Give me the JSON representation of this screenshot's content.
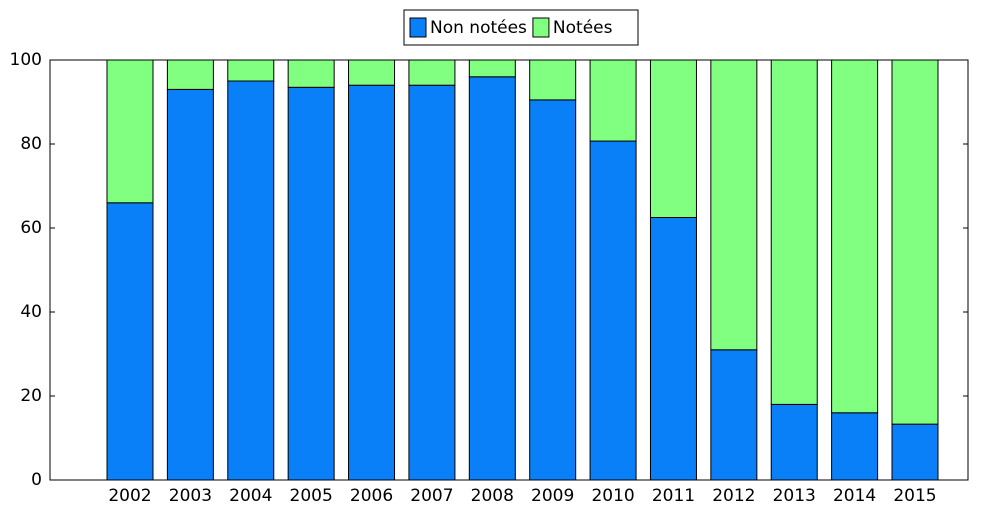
{
  "chart_data": {
    "type": "stacked_bar",
    "categories": [
      "2002",
      "2003",
      "2004",
      "2005",
      "2006",
      "2007",
      "2008",
      "2009",
      "2010",
      "2011",
      "2012",
      "2013",
      "2014",
      "2015"
    ],
    "series": [
      {
        "name": "Non notées",
        "color": "#0a80f8",
        "values": [
          66,
          93,
          95,
          93.5,
          94,
          94,
          96,
          90.5,
          80.7,
          62.5,
          31,
          18,
          16,
          13.3
        ]
      },
      {
        "name": "Notées",
        "color": "#80ff80",
        "values": [
          34,
          7,
          5,
          6.5,
          6,
          6,
          4,
          9.5,
          19.3,
          37.5,
          69,
          82,
          84,
          86.7
        ]
      }
    ],
    "ylim": [
      0,
      100
    ],
    "yticks": [
      0,
      20,
      40,
      60,
      80,
      100
    ],
    "legend": "top"
  }
}
